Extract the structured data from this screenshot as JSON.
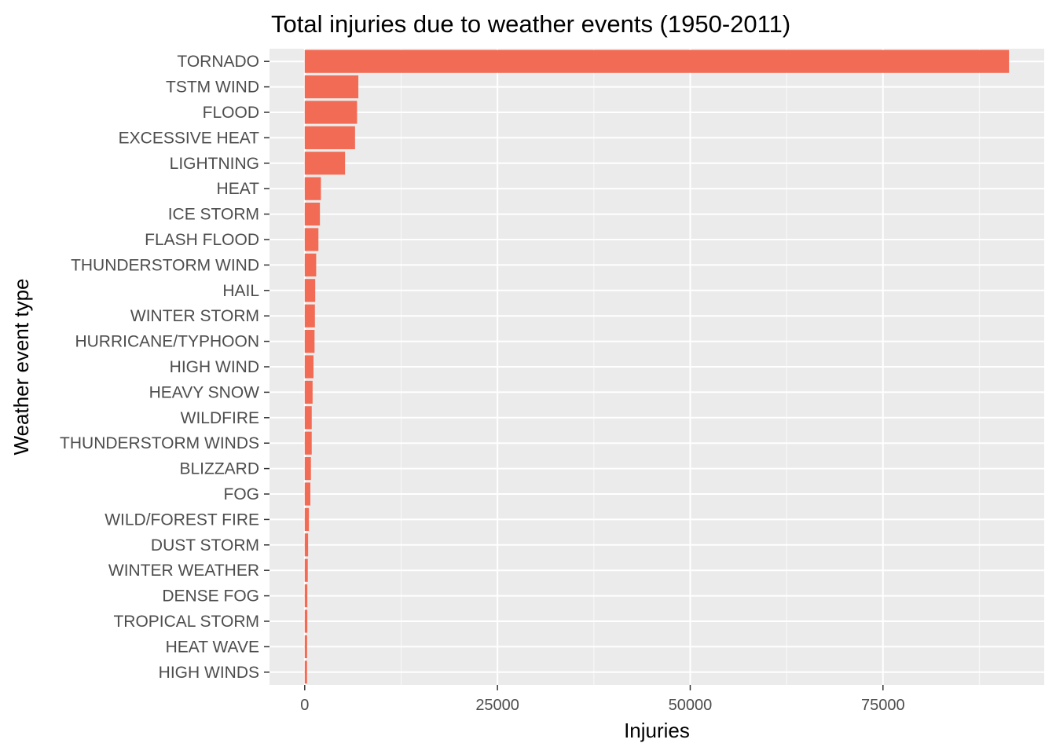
{
  "chart_data": {
    "type": "bar",
    "orientation": "horizontal",
    "title": "Total injuries due to weather events (1950-2011)",
    "xlabel": "Injuries",
    "ylabel": "Weather event type",
    "categories": [
      "TORNADO",
      "TSTM WIND",
      "FLOOD",
      "EXCESSIVE HEAT",
      "LIGHTNING",
      "HEAT",
      "ICE STORM",
      "FLASH FLOOD",
      "THUNDERSTORM WIND",
      "HAIL",
      "WINTER STORM",
      "HURRICANE/TYPHOON",
      "HIGH WIND",
      "HEAVY SNOW",
      "WILDFIRE",
      "THUNDERSTORM WINDS",
      "BLIZZARD",
      "FOG",
      "WILD/FOREST FIRE",
      "DUST STORM",
      "WINTER WEATHER",
      "DENSE FOG",
      "TROPICAL STORM",
      "HEAT WAVE",
      "HIGH WINDS"
    ],
    "values": [
      91346,
      6957,
      6789,
      6525,
      5230,
      2100,
      1975,
      1777,
      1488,
      1361,
      1321,
      1275,
      1137,
      1021,
      911,
      908,
      805,
      734,
      545,
      440,
      398,
      342,
      340,
      309,
      302
    ],
    "xlim": [
      -4567,
      95913
    ],
    "x_ticks": [
      0,
      25000,
      50000,
      75000
    ],
    "x_tick_labels": [
      "0",
      "25000",
      "50000",
      "75000"
    ],
    "grid": true,
    "legend": "none",
    "colors": {
      "bar": "#f26b54",
      "panel_background": "#ebebeb",
      "grid_major": "#ffffff",
      "grid_minor": "#f7f7f7",
      "tick_label": "#4d4d4d",
      "tick_mark": "#333333"
    }
  }
}
